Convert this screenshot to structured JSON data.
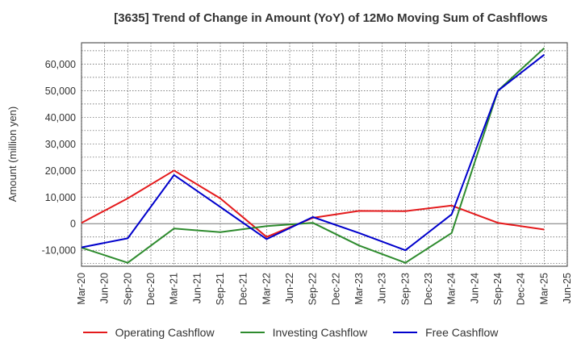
{
  "chart_data": {
    "type": "line",
    "title": "[3635]  Trend of Change in Amount (YoY) of 12Mo Moving Sum of Cashflows",
    "xlabel": "",
    "ylabel": "Amount (million yen)",
    "ylim": [
      -16000,
      68000
    ],
    "yticks": [
      -10000,
      0,
      10000,
      20000,
      30000,
      40000,
      50000,
      60000
    ],
    "ytick_labels": [
      "-10,000",
      "0",
      "10,000",
      "20,000",
      "30,000",
      "40,000",
      "50,000",
      "60,000"
    ],
    "x_tick_labels": [
      "Mar-20",
      "Jun-20",
      "Sep-20",
      "Dec-20",
      "Mar-21",
      "Jun-21",
      "Sep-21",
      "Dec-21",
      "Mar-22",
      "Jun-22",
      "Sep-22",
      "Dec-22",
      "Mar-23",
      "Jun-23",
      "Sep-23",
      "Dec-23",
      "Mar-24",
      "Jun-24",
      "Sep-24",
      "Dec-24",
      "Mar-25",
      "Jun-25"
    ],
    "grid": true,
    "legend_position": "bottom",
    "series": [
      {
        "name": "Operating Cashflow",
        "color": "#e41a1c",
        "points": [
          [
            0,
            300
          ],
          [
            2,
            9500
          ],
          [
            4,
            20000
          ],
          [
            6,
            9500
          ],
          [
            8,
            -5000
          ],
          [
            10,
            2200
          ],
          [
            12,
            4800
          ],
          [
            14,
            4700
          ],
          [
            16,
            6800
          ],
          [
            18,
            300
          ],
          [
            20,
            -2200
          ]
        ]
      },
      {
        "name": "Investing Cashflow",
        "color": "#2e8b2e",
        "points": [
          [
            0,
            -9000
          ],
          [
            2,
            -14700
          ],
          [
            4,
            -1800
          ],
          [
            6,
            -3200
          ],
          [
            8,
            -900
          ],
          [
            10,
            300
          ],
          [
            12,
            -8200
          ],
          [
            14,
            -14700
          ],
          [
            16,
            -3500
          ],
          [
            18,
            50000
          ],
          [
            20,
            66000
          ]
        ]
      },
      {
        "name": "Free Cashflow",
        "color": "#0000cc",
        "points": [
          [
            0,
            -8900
          ],
          [
            2,
            -5500
          ],
          [
            4,
            18300
          ],
          [
            6,
            6300
          ],
          [
            8,
            -5800
          ],
          [
            10,
            2500
          ],
          [
            12,
            -3500
          ],
          [
            14,
            -10000
          ],
          [
            16,
            3500
          ],
          [
            18,
            50000
          ],
          [
            20,
            63500
          ]
        ]
      }
    ]
  }
}
